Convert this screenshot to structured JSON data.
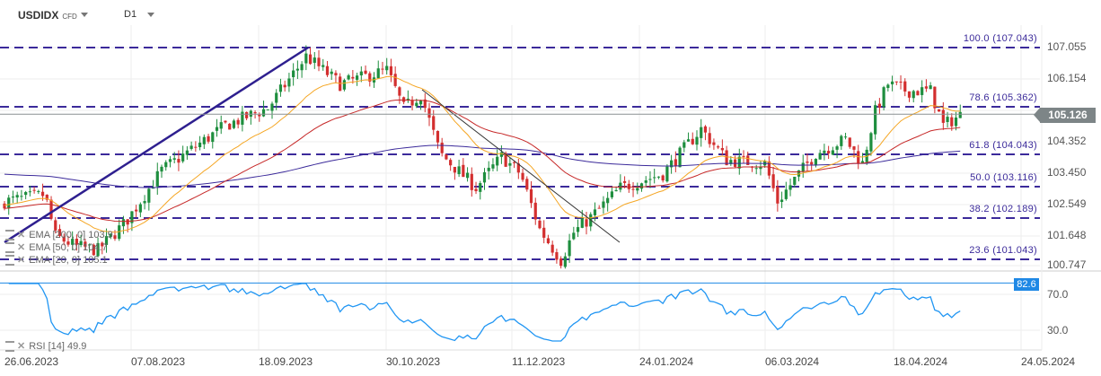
{
  "header": {
    "symbol": "USDIDX",
    "symbol_type": "CFD",
    "timeframe": "D1"
  },
  "price_axis": [
    "107.055",
    "106.154",
    "104.352",
    "103.450",
    "102.549",
    "101.648",
    "100.747"
  ],
  "current_price": "105.126",
  "fib_levels": [
    {
      "label": "100.0 (107.043)",
      "price": 107.043
    },
    {
      "label": "78.6 (105.362)",
      "price": 105.362
    },
    {
      "label": "61.8 (104.043)",
      "price": 104.043
    },
    {
      "label": "50.0 (103.116)",
      "price": 103.116
    },
    {
      "label": "38.2 (102.189)",
      "price": 102.189
    },
    {
      "label": "23.6 (101.043)",
      "price": 101.043
    }
  ],
  "indicators": [
    {
      "label": "EMA [200, 0] 103.9",
      "color": "#3b2a9a"
    },
    {
      "label": "EMA [50, 0] 104.7",
      "color": "#c62828"
    },
    {
      "label": "EMA [20, 0] 105.1",
      "color": "#f5a623"
    }
  ],
  "rsi": {
    "label": "RSI [14] 49.9",
    "level_label": "82.6",
    "axis": [
      "70.0",
      "30.0"
    ],
    "color": "#2196f3"
  },
  "dates": [
    "26.06.2023",
    "07.08.2023",
    "18.09.2023",
    "30.10.2023",
    "11.12.2023",
    "24.01.2024",
    "06.03.2024",
    "18.04.2024",
    "24.05.2024"
  ],
  "chart_data": {
    "type": "candlestick",
    "symbol": "USDIDX",
    "timeframe": "D1",
    "ylim": [
      100.747,
      107.055
    ],
    "close_path": [
      [
        0,
        102.6
      ],
      [
        9.5,
        102.8
      ],
      [
        12,
        101.6
      ],
      [
        17,
        101.3
      ],
      [
        22,
        101.2
      ],
      [
        28.5,
        102.0
      ],
      [
        37,
        103.5
      ],
      [
        52,
        104.8
      ],
      [
        62,
        105.3
      ],
      [
        71,
        106.8
      ],
      [
        79,
        106.0
      ],
      [
        90,
        106.4
      ],
      [
        94,
        105.3
      ],
      [
        98,
        105.7
      ],
      [
        102.5,
        104.0
      ],
      [
        111,
        103.0
      ],
      [
        117,
        103.9
      ],
      [
        121.5,
        103.4
      ],
      [
        126,
        101.8
      ],
      [
        131,
        100.9
      ],
      [
        134,
        101.7
      ],
      [
        138.5,
        102.2
      ],
      [
        145,
        103.0
      ],
      [
        155,
        103.4
      ],
      [
        164,
        104.7
      ],
      [
        170,
        103.8
      ],
      [
        179,
        103.7
      ],
      [
        182,
        102.6
      ],
      [
        187,
        103.4
      ],
      [
        191,
        104.0
      ],
      [
        198,
        104.4
      ],
      [
        202,
        103.7
      ],
      [
        205,
        105.2
      ],
      [
        208,
        106.0
      ],
      [
        212.5,
        105.8
      ],
      [
        218,
        105.8
      ],
      [
        221,
        104.8
      ],
      [
        225,
        105.1
      ]
    ],
    "bars": 226,
    "up_color": "#1e8e3e",
    "down_color": "#d32f2f"
  }
}
